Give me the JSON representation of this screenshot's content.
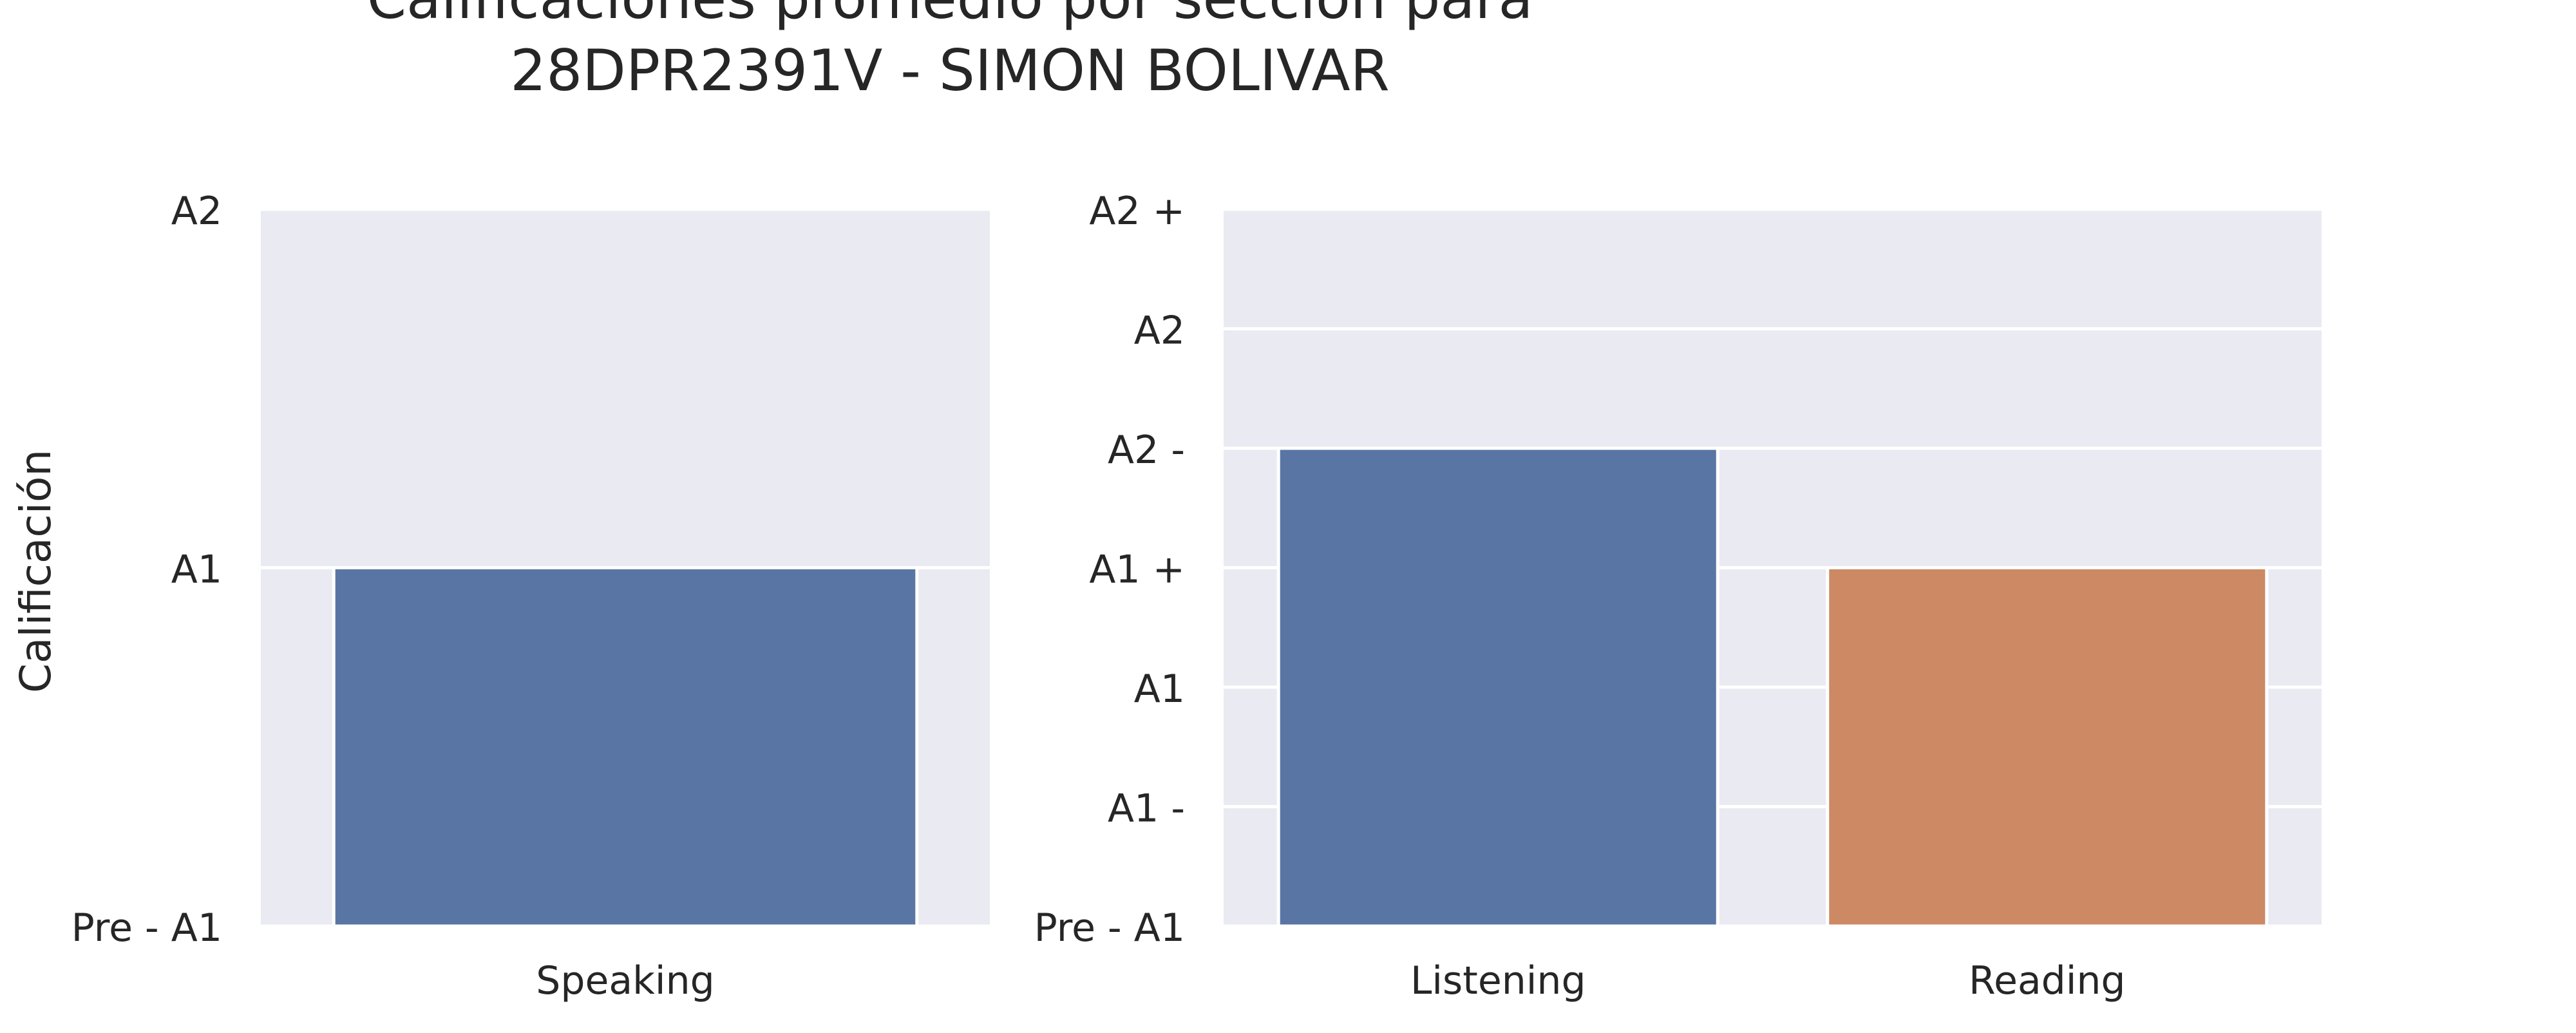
{
  "title_line1": "Calificaciones promedio por sección para",
  "title_line2": "28DPR2391V - SIMON BOLIVAR",
  "chart_data": [
    {
      "type": "bar",
      "ylabel": "Calificación",
      "categories": [
        "Speaking"
      ],
      "values": [
        1
      ],
      "ylim": [
        0,
        2
      ],
      "yticks": [
        0,
        1,
        2
      ],
      "ytick_labels": [
        "Pre - A1",
        "A1",
        "A2"
      ],
      "colors": [
        "#5975a4"
      ],
      "grid": true
    },
    {
      "type": "bar",
      "ylabel": "",
      "categories": [
        "Listening",
        "Reading"
      ],
      "values": [
        4,
        3
      ],
      "ylim": [
        0,
        6
      ],
      "yticks": [
        0,
        1,
        2,
        3,
        4,
        5,
        6
      ],
      "ytick_labels": [
        "Pre - A1",
        "A1 -",
        "A1",
        "A1 +",
        "A2 -",
        "A2",
        "A2 +"
      ],
      "colors": [
        "#5975a4",
        "#cc8963"
      ],
      "grid": true
    }
  ],
  "style": {
    "panel_background": "#eaeaf2",
    "grid_color": "#ffffff",
    "text_color": "#262626"
  }
}
